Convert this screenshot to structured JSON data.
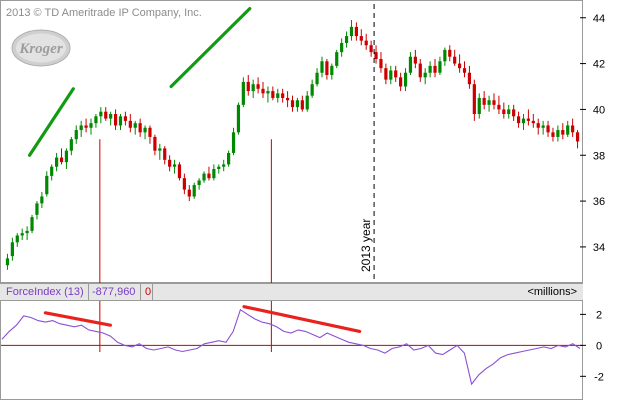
{
  "header": {
    "copyright": "2013 © TD Ameritrade IP Company, Inc."
  },
  "logo": {
    "text": "Kroger",
    "color": "#c8c8c8"
  },
  "year_marker": {
    "label": "2013 year"
  },
  "indicator": {
    "name": "ForceIndex (13)",
    "value": "-877,960",
    "zero": "0",
    "units": "<millions>"
  },
  "colors": {
    "up": "#008800",
    "down": "#cc0000",
    "trend_up": "#129b12",
    "trend_down": "#e8231e",
    "force_line": "#8a50d6",
    "zero_line": "#cc0000",
    "marker_line": "#cc0000"
  },
  "chart_data": [
    {
      "type": "candlestick",
      "title": "",
      "ylim": [
        32.6,
        44.6
      ],
      "yticks": [
        34,
        36,
        38,
        40,
        42,
        44
      ],
      "ytick_labels": [
        "34",
        "36",
        "38",
        "40",
        "42",
        "44"
      ],
      "grid": false,
      "ohlc": [
        [
          33.2,
          33.7,
          33.0,
          33.5
        ],
        [
          33.6,
          34.4,
          33.4,
          34.2
        ],
        [
          34.2,
          34.6,
          34.0,
          34.5
        ],
        [
          34.5,
          34.8,
          34.3,
          34.6
        ],
        [
          34.6,
          34.9,
          34.3,
          34.7
        ],
        [
          34.7,
          35.4,
          34.6,
          35.3
        ],
        [
          35.4,
          36.0,
          35.2,
          35.9
        ],
        [
          35.9,
          36.4,
          35.7,
          36.2
        ],
        [
          36.3,
          37.3,
          36.2,
          37.1
        ],
        [
          37.1,
          37.6,
          36.9,
          37.5
        ],
        [
          37.5,
          38.1,
          37.3,
          37.9
        ],
        [
          37.9,
          38.3,
          37.6,
          37.7
        ],
        [
          37.7,
          38.3,
          37.4,
          38.2
        ],
        [
          38.2,
          38.8,
          38.0,
          38.7
        ],
        [
          38.7,
          39.3,
          38.5,
          39.1
        ],
        [
          39.1,
          39.5,
          38.8,
          39.3
        ],
        [
          39.3,
          39.6,
          39.0,
          39.2
        ],
        [
          39.2,
          39.6,
          38.9,
          39.4
        ],
        [
          39.4,
          39.8,
          39.2,
          39.7
        ],
        [
          39.7,
          40.1,
          39.4,
          39.9
        ],
        [
          39.9,
          40.1,
          39.5,
          39.6
        ],
        [
          39.6,
          39.9,
          39.3,
          39.8
        ],
        [
          39.8,
          40.0,
          39.1,
          39.3
        ],
        [
          39.3,
          39.8,
          39.1,
          39.7
        ],
        [
          39.7,
          39.9,
          39.3,
          39.5
        ],
        [
          39.5,
          39.8,
          39.0,
          39.2
        ],
        [
          39.2,
          39.5,
          38.9,
          39.4
        ],
        [
          39.4,
          39.6,
          38.8,
          39.0
        ],
        [
          39.0,
          39.3,
          38.7,
          39.2
        ],
        [
          39.2,
          39.3,
          38.5,
          38.8
        ],
        [
          38.8,
          38.9,
          38.0,
          38.2
        ],
        [
          38.2,
          38.5,
          37.8,
          38.3
        ],
        [
          38.3,
          38.4,
          37.6,
          37.8
        ],
        [
          37.8,
          38.0,
          37.3,
          37.5
        ],
        [
          37.5,
          37.8,
          37.2,
          37.6
        ],
        [
          37.6,
          37.7,
          36.9,
          37.0
        ],
        [
          37.0,
          37.2,
          36.3,
          36.5
        ],
        [
          36.5,
          36.7,
          36.0,
          36.2
        ],
        [
          36.2,
          36.8,
          36.1,
          36.7
        ],
        [
          36.7,
          37.0,
          36.5,
          36.9
        ],
        [
          36.9,
          37.3,
          36.8,
          37.2
        ],
        [
          37.2,
          37.5,
          36.9,
          37.0
        ],
        [
          37.0,
          37.6,
          36.9,
          37.4
        ],
        [
          37.4,
          37.6,
          37.2,
          37.5
        ],
        [
          37.5,
          37.8,
          37.3,
          37.6
        ],
        [
          37.6,
          38.2,
          37.5,
          38.1
        ],
        [
          38.1,
          39.2,
          38.0,
          39.0
        ],
        [
          39.0,
          40.3,
          38.9,
          40.2
        ],
        [
          40.2,
          41.4,
          40.1,
          41.2
        ],
        [
          41.2,
          41.5,
          40.6,
          40.8
        ],
        [
          40.8,
          41.3,
          40.5,
          41.1
        ],
        [
          41.1,
          41.4,
          40.7,
          40.9
        ],
        [
          40.9,
          41.2,
          40.5,
          40.7
        ],
        [
          40.7,
          41.0,
          40.3,
          40.8
        ],
        [
          40.8,
          41.0,
          40.4,
          40.5
        ],
        [
          40.5,
          40.9,
          40.3,
          40.7
        ],
        [
          40.7,
          40.9,
          40.3,
          40.5
        ],
        [
          40.5,
          40.8,
          40.1,
          40.4
        ],
        [
          40.4,
          40.6,
          39.9,
          40.1
        ],
        [
          40.1,
          40.5,
          39.9,
          40.4
        ],
        [
          40.4,
          40.6,
          39.9,
          40.0
        ],
        [
          40.0,
          40.8,
          39.9,
          40.6
        ],
        [
          40.6,
          41.3,
          40.5,
          41.1
        ],
        [
          41.1,
          41.8,
          41.0,
          41.6
        ],
        [
          41.6,
          42.3,
          41.4,
          42.1
        ],
        [
          42.1,
          42.2,
          41.3,
          41.5
        ],
        [
          41.5,
          42.0,
          41.3,
          41.9
        ],
        [
          41.9,
          42.6,
          41.8,
          42.5
        ],
        [
          42.5,
          43.1,
          42.3,
          42.9
        ],
        [
          42.9,
          43.4,
          42.7,
          43.2
        ],
        [
          43.2,
          43.9,
          43.0,
          43.6
        ],
        [
          43.6,
          43.8,
          43.0,
          43.2
        ],
        [
          43.2,
          43.5,
          42.8,
          43.0
        ],
        [
          43.0,
          43.3,
          42.6,
          42.8
        ],
        [
          42.8,
          43.0,
          42.3,
          42.5
        ],
        [
          42.5,
          42.8,
          42.0,
          42.2
        ],
        [
          42.2,
          42.5,
          41.6,
          41.8
        ],
        [
          41.8,
          42.0,
          41.1,
          41.3
        ],
        [
          41.3,
          41.9,
          41.1,
          41.7
        ],
        [
          41.7,
          41.9,
          41.2,
          41.4
        ],
        [
          41.4,
          41.6,
          40.8,
          41.0
        ],
        [
          41.0,
          41.8,
          40.8,
          41.6
        ],
        [
          41.6,
          42.5,
          41.5,
          42.3
        ],
        [
          42.3,
          42.6,
          41.8,
          42.0
        ],
        [
          42.0,
          42.2,
          41.2,
          41.4
        ],
        [
          41.4,
          41.8,
          41.1,
          41.6
        ],
        [
          41.6,
          42.1,
          41.4,
          41.9
        ],
        [
          41.9,
          42.2,
          41.4,
          41.6
        ],
        [
          41.6,
          42.3,
          41.5,
          42.1
        ],
        [
          42.1,
          42.7,
          41.9,
          42.6
        ],
        [
          42.6,
          42.8,
          42.1,
          42.3
        ],
        [
          42.3,
          42.6,
          41.9,
          42.0
        ],
        [
          42.0,
          42.4,
          41.6,
          41.8
        ],
        [
          41.8,
          42.1,
          41.4,
          41.6
        ],
        [
          41.6,
          41.9,
          40.9,
          41.1
        ],
        [
          41.1,
          41.3,
          39.5,
          39.8
        ],
        [
          39.8,
          40.7,
          39.6,
          40.5
        ],
        [
          40.5,
          40.8,
          40.0,
          40.2
        ],
        [
          40.2,
          40.6,
          39.9,
          40.4
        ],
        [
          40.4,
          40.7,
          40.0,
          40.2
        ],
        [
          40.2,
          40.6,
          39.8,
          40.0
        ],
        [
          40.0,
          40.3,
          39.6,
          39.8
        ],
        [
          39.8,
          40.2,
          39.6,
          40.0
        ],
        [
          40.0,
          40.2,
          39.5,
          39.7
        ],
        [
          39.7,
          39.9,
          39.2,
          39.4
        ],
        [
          39.4,
          39.8,
          39.1,
          39.6
        ],
        [
          39.6,
          40.0,
          39.3,
          39.5
        ],
        [
          39.5,
          39.8,
          39.2,
          39.4
        ],
        [
          39.4,
          39.6,
          38.9,
          39.2
        ],
        [
          39.2,
          39.5,
          38.9,
          39.3
        ],
        [
          39.3,
          39.5,
          38.8,
          39.0
        ],
        [
          39.0,
          39.2,
          38.6,
          38.8
        ],
        [
          38.8,
          39.3,
          38.6,
          39.1
        ],
        [
          39.1,
          39.4,
          38.7,
          38.9
        ],
        [
          38.9,
          39.5,
          38.8,
          39.3
        ],
        [
          39.3,
          39.6,
          38.8,
          39.0
        ],
        [
          39.0,
          39.1,
          38.3,
          38.6
        ]
      ],
      "trendlines": [
        {
          "x": [
            4.5,
            13.4
          ],
          "y": [
            38.0,
            40.9
          ]
        },
        {
          "x": [
            33.3,
            49.3
          ],
          "y": [
            41.0,
            44.4
          ]
        }
      ],
      "vlines": [
        {
          "x": 18.8,
          "style": "solid",
          "label": ""
        },
        {
          "x": 53.7,
          "style": "solid",
          "label": ""
        },
        {
          "x": 74.6,
          "style": "dashed",
          "label": "2013 year"
        }
      ]
    },
    {
      "type": "line",
      "name": "ForceIndex (13)",
      "ylim": [
        -3.4,
        2.8
      ],
      "yticks": [
        2,
        0,
        -2
      ],
      "ytick_labels": [
        "2",
        "0",
        "-2"
      ],
      "zero_line": 0,
      "x": [
        0,
        1,
        2,
        3,
        4,
        5,
        6,
        7,
        8,
        9,
        10,
        11,
        12,
        13,
        14,
        15,
        16,
        17,
        18,
        19,
        20,
        21,
        22,
        23,
        24,
        25,
        26,
        27,
        28,
        29,
        30,
        31,
        32,
        33,
        34,
        35,
        36,
        37,
        38,
        39,
        40,
        41,
        42,
        43,
        44,
        45,
        46,
        47,
        48,
        49,
        50,
        51,
        52,
        53,
        54,
        55,
        56,
        57,
        58,
        59,
        60,
        61,
        62,
        63,
        64,
        65,
        66,
        67,
        68,
        69,
        70,
        71,
        72,
        73,
        74,
        75,
        76,
        77,
        78,
        79,
        80
      ],
      "y": [
        0.4,
        0.9,
        1.3,
        1.9,
        1.8,
        1.6,
        1.5,
        1.6,
        1.4,
        1.3,
        1.2,
        1.3,
        1.0,
        0.9,
        0.8,
        0.6,
        0.2,
        0.0,
        -0.1,
        0.1,
        -0.2,
        -0.3,
        -0.2,
        -0.1,
        -0.3,
        -0.4,
        -0.3,
        -0.2,
        0.1,
        0.2,
        0.3,
        0.2,
        0.9,
        2.3,
        2.0,
        1.7,
        1.5,
        1.4,
        1.2,
        0.9,
        0.8,
        1.0,
        0.9,
        0.7,
        0.5,
        0.8,
        0.6,
        0.4,
        0.2,
        0.1,
        0.0,
        -0.2,
        -0.3,
        -0.5,
        -0.2,
        -0.1,
        0.1,
        -0.3,
        -0.2,
        0.0,
        -0.5,
        -0.6,
        -0.3,
        0.0,
        -0.5,
        -2.5,
        -1.9,
        -1.5,
        -1.2,
        -0.8,
        -0.6,
        -0.5,
        -0.4,
        -0.3,
        -0.2,
        -0.1,
        -0.2,
        0.0,
        -0.1,
        0.1,
        -0.2
      ],
      "trendlines": [
        {
          "x": [
            6.0,
            15.0
          ],
          "y": [
            2.1,
            1.3
          ]
        },
        {
          "x": [
            33.5,
            49.5
          ],
          "y": [
            2.5,
            0.9
          ]
        }
      ]
    }
  ]
}
